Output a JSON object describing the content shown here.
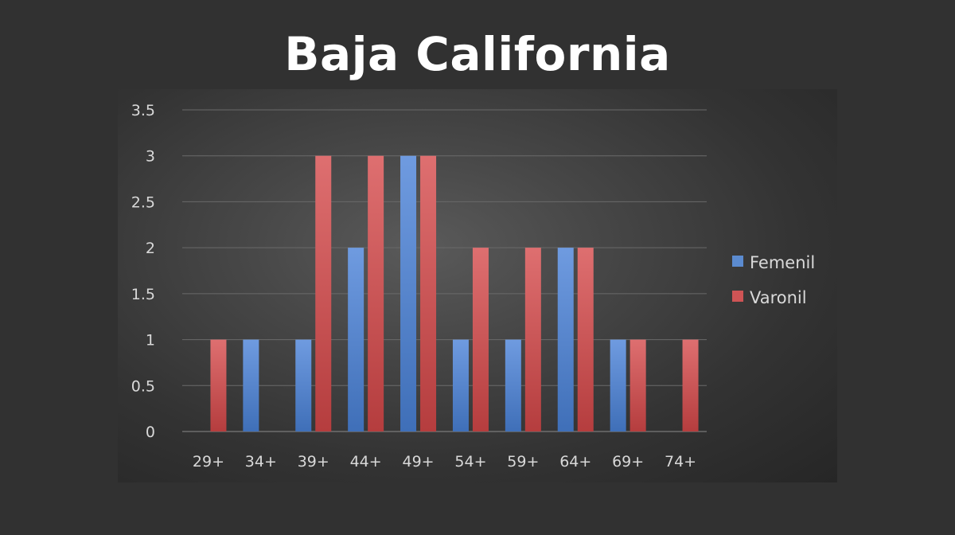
{
  "page_title": "Baja California",
  "chart_data": {
    "type": "bar",
    "title": "Baja California",
    "xlabel": "",
    "ylabel": "",
    "categories": [
      "29+",
      "34+",
      "39+",
      "44+",
      "49+",
      "54+",
      "59+",
      "64+",
      "69+",
      "74+"
    ],
    "series": [
      {
        "name": "Femenil",
        "color": "#5b8bd0",
        "values": [
          0,
          1,
          1,
          2,
          3,
          1,
          1,
          2,
          1,
          0
        ]
      },
      {
        "name": "Varonil",
        "color": "#cf5455",
        "values": [
          1,
          0,
          3,
          3,
          3,
          2,
          2,
          2,
          1,
          1
        ]
      }
    ],
    "ylim": [
      0,
      3.5
    ],
    "yticks": [
      "0",
      "0.5",
      "1",
      "1.5",
      "2",
      "2.5",
      "3",
      "3.5"
    ],
    "grid": true,
    "legend_position": "right"
  }
}
